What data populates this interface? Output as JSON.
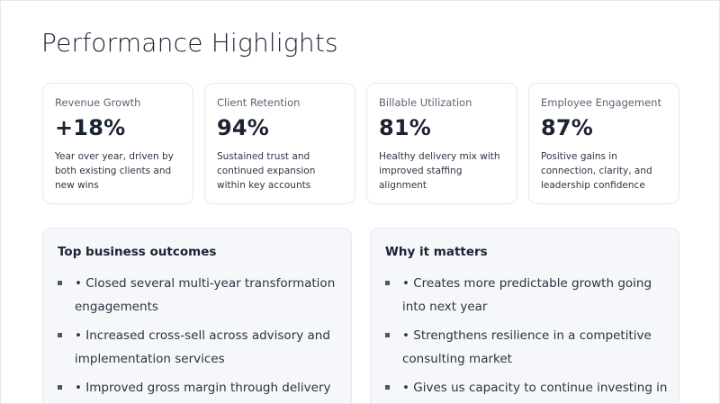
{
  "page": {
    "title": "Performance Highlights"
  },
  "kpis": [
    {
      "label": "Revenue Growth",
      "value": "+18%",
      "description": "Year over year, driven by both existing clients and new wins"
    },
    {
      "label": "Client Retention",
      "value": "94%",
      "description": "Sustained trust and continued expansion within key accounts"
    },
    {
      "label": "Billable Utilization",
      "value": "81%",
      "description": "Healthy delivery mix with improved staffing alignment"
    },
    {
      "label": "Employee Engagement",
      "value": "87%",
      "description": "Positive gains in connection, clarity, and leadership confidence"
    }
  ],
  "outcomes": {
    "title": "Top business outcomes",
    "items": [
      "• Closed several multi-year transformation engagements",
      "• Increased cross-sell across advisory and implementation services",
      "• Improved gross margin through delivery"
    ]
  },
  "why": {
    "title": "Why it matters",
    "items": [
      "• Creates more predictable growth going into next year",
      "• Strengthens resilience in a competitive consulting market",
      "• Gives us capacity to continue investing in"
    ]
  }
}
